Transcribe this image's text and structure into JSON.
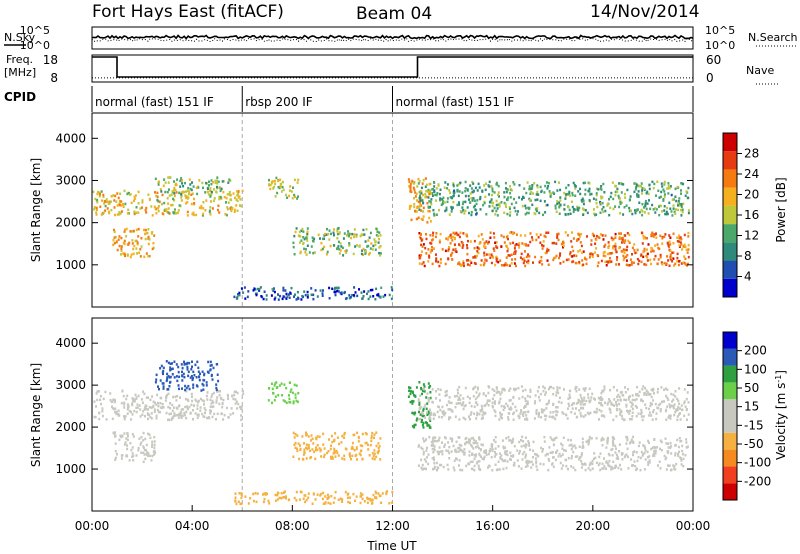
{
  "header": {
    "station": "Fort Hays East (fitACF)",
    "beam": "Beam 04",
    "date": "14/Nov/2014"
  },
  "top_panel": {
    "left_label": "N.Sky",
    "right_label": "N.Search",
    "left_ticks": [
      "10^5",
      "10^0"
    ],
    "right_ticks": [
      "10^5",
      "10^0"
    ]
  },
  "freq_panel": {
    "left_label_1": "Freq.",
    "left_label_2": "[MHz]",
    "right_label": "Nave",
    "left_ticks": [
      "18",
      "8"
    ],
    "right_ticks": [
      "60",
      "0"
    ],
    "freq_steps": [
      {
        "t": 0,
        "f": 18
      },
      {
        "t": 1.0,
        "f": 10
      },
      {
        "t": 13.0,
        "f": 18
      },
      {
        "t": 24,
        "f": 18
      }
    ],
    "nave_level": 10
  },
  "cpid": {
    "label": "CPID",
    "segments": [
      {
        "start": 0,
        "end": 6.0,
        "name": "normal (fast) 151 IF"
      },
      {
        "start": 6.0,
        "end": 12.0,
        "name": "rbsp 200 IF"
      },
      {
        "start": 12.0,
        "end": 24,
        "name": "normal (fast) 151 IF"
      }
    ]
  },
  "colors": {
    "power_scale": [
      "#0000cc",
      "#1f4fb0",
      "#2e8a7a",
      "#4aa86a",
      "#bfc83a",
      "#f5b020",
      "#f57a10",
      "#e63a10",
      "#cc0000"
    ],
    "velocity_scale": [
      "#cc0000",
      "#f04020",
      "#f58a20",
      "#f5b040",
      "#c8c8c0",
      "#c8c8c0",
      "#6ad04a",
      "#2ea040",
      "#2a5ab8",
      "#0000cc"
    ]
  },
  "chart_data": [
    {
      "type": "heatmap",
      "name": "power",
      "ylabel": "Slant Range [km]",
      "ylim": [
        0,
        4600
      ],
      "xlim": [
        0,
        24
      ],
      "yticks": [
        "1000",
        "2000",
        "3000",
        "4000"
      ],
      "colorbar_label": "Power [dB]",
      "colorbar_ticks": [
        "28",
        "24",
        "20",
        "16",
        "12",
        "8",
        "4"
      ],
      "colorbar_range": [
        0,
        32
      ],
      "bands": [
        {
          "t": [
            0,
            6
          ],
          "range": [
            2200,
            2800
          ],
          "level": 18
        },
        {
          "t": [
            2.5,
            5.5
          ],
          "range": [
            2700,
            3100
          ],
          "level": 14
        },
        {
          "t": [
            0.8,
            2.5
          ],
          "range": [
            1200,
            1900
          ],
          "level": 20
        },
        {
          "t": [
            7.0,
            8.2
          ],
          "range": [
            2600,
            3100
          ],
          "level": 16
        },
        {
          "t": [
            8.0,
            11.5
          ],
          "range": [
            1250,
            1900
          ],
          "level": 14
        },
        {
          "t": [
            12.6,
            13.5
          ],
          "range": [
            2000,
            3100
          ],
          "level": 20
        },
        {
          "t": [
            13.0,
            23.8
          ],
          "range": [
            2200,
            3000
          ],
          "level": 12
        },
        {
          "t": [
            13.0,
            23.8
          ],
          "range": [
            1000,
            1800
          ],
          "level": 24
        },
        {
          "t": [
            5.6,
            12.0
          ],
          "range": [
            200,
            500
          ],
          "level": 6
        }
      ]
    },
    {
      "type": "heatmap",
      "name": "velocity",
      "ylabel": "Slant Range [km]",
      "xlabel": "Time UT",
      "ylim": [
        0,
        4600
      ],
      "xlim": [
        0,
        24
      ],
      "yticks": [
        "1000",
        "2000",
        "3000",
        "4000"
      ],
      "xticks": [
        "00:00",
        "04:00",
        "08:00",
        "12:00",
        "16:00",
        "20:00",
        "00:00"
      ],
      "colorbar_label": "Velocity [m s^-1]",
      "colorbar_ticks": [
        "200",
        "100",
        "50",
        "15",
        "-15",
        "-50",
        "-100",
        "-200"
      ],
      "colorbar_range": [
        -250,
        250
      ],
      "bands": [
        {
          "t": [
            0,
            6
          ],
          "range": [
            2200,
            2900
          ],
          "level": 0
        },
        {
          "t": [
            0.8,
            2.5
          ],
          "range": [
            1200,
            1900
          ],
          "level": 0
        },
        {
          "t": [
            2.5,
            5.0
          ],
          "range": [
            2900,
            3600
          ],
          "level": 180
        },
        {
          "t": [
            7.0,
            8.2
          ],
          "range": [
            2600,
            3100
          ],
          "level": 30
        },
        {
          "t": [
            8.0,
            11.5
          ],
          "range": [
            1250,
            1900
          ],
          "level": -40
        },
        {
          "t": [
            12.6,
            13.5
          ],
          "range": [
            2000,
            3100
          ],
          "level": 60
        },
        {
          "t": [
            13.0,
            23.8
          ],
          "range": [
            2200,
            3000
          ],
          "level": 0
        },
        {
          "t": [
            13.0,
            23.8
          ],
          "range": [
            1000,
            1800
          ],
          "level": 0
        },
        {
          "t": [
            5.6,
            12.0
          ],
          "range": [
            200,
            500
          ],
          "level": -40
        }
      ]
    }
  ]
}
